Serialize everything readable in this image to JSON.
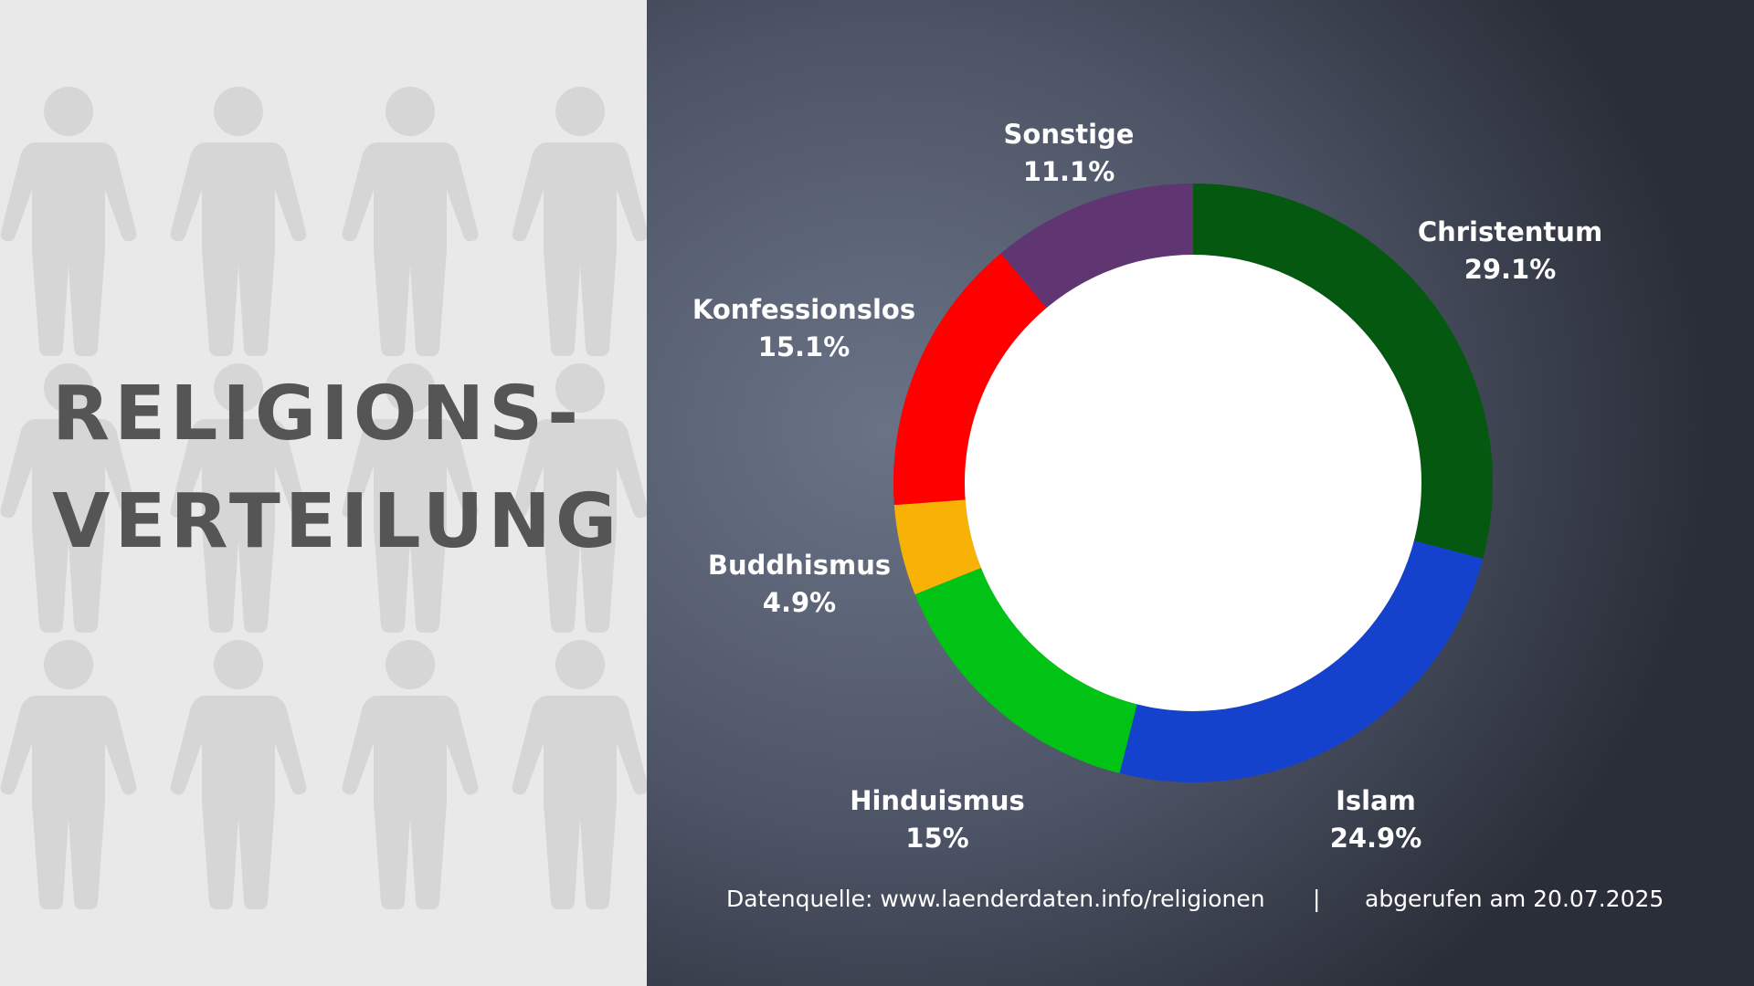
{
  "title": {
    "line1": "RELIGIONS-",
    "line2": "VERTEILUNG"
  },
  "source": {
    "text": "Datenquelle: www.laenderdaten.info/religionen",
    "separator": "|",
    "retrieved": "abgerufen am 20.07.2025"
  },
  "background": {
    "left_panel_color": "#e9e9e9",
    "figure_icon": "person-figure-icon",
    "figure_color": "#d6d6d6"
  },
  "chart_data": {
    "type": "pie",
    "variant": "donut",
    "start_angle_deg": 0,
    "direction": "clockwise",
    "hole_color": "#ffffff",
    "slices": [
      {
        "name": "Christentum",
        "label": "29.1%",
        "value": 29.1,
        "color": "#04580f"
      },
      {
        "name": "Islam",
        "label": "24.9%",
        "value": 24.9,
        "color": "#1442cc"
      },
      {
        "name": "Hinduismus",
        "label": "15%",
        "value": 15.0,
        "color": "#00c316"
      },
      {
        "name": "Buddhismus",
        "label": "4.9%",
        "value": 4.9,
        "color": "#f7b205"
      },
      {
        "name": "Konfessionslos",
        "label": "15.1%",
        "value": 15.1,
        "color": "#fe0000"
      },
      {
        "name": "Sonstige",
        "label": "11.1%",
        "value": 11.1,
        "color": "#5f3572"
      }
    ]
  }
}
